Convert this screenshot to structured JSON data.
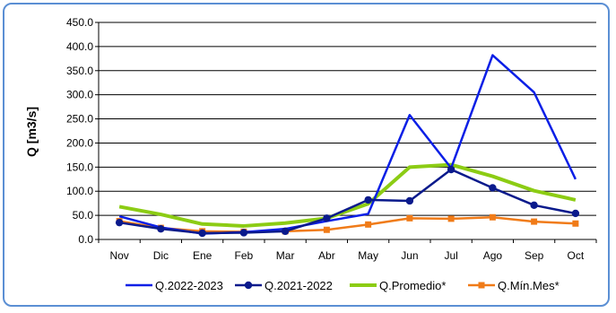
{
  "chart_data": {
    "type": "line",
    "title": "",
    "xlabel": "",
    "ylabel": "Q [m3/s]",
    "ylim": [
      0,
      450
    ],
    "ytick_step": 50,
    "ytick_labels": [
      "0.0",
      "50.0",
      "100.0",
      "150.0",
      "200.0",
      "250.0",
      "300.0",
      "350.0",
      "400.0",
      "450.0"
    ],
    "grid": true,
    "legend_position": "bottom",
    "categories": [
      "Nov",
      "Dic",
      "Ene",
      "Feb",
      "Mar",
      "Abr",
      "May",
      "Jun",
      "Jul",
      "Ago",
      "Sep",
      "Oct"
    ],
    "series": [
      {
        "name": "Q.2022-2023",
        "color": "#0b1fe6",
        "marker": "none",
        "values": [
          48,
          25,
          12,
          15,
          22,
          38,
          53,
          258,
          148,
          382,
          305,
          125
        ]
      },
      {
        "name": "Q.2021-2022",
        "color": "#0a1a8c",
        "marker": "circle",
        "values": [
          35,
          22,
          13,
          14,
          17,
          44,
          82,
          80,
          145,
          107,
          71,
          54
        ]
      },
      {
        "name": "Q.Promedio*",
        "color": "#8ccc14",
        "marker": "none",
        "values": [
          68,
          52,
          32,
          28,
          34,
          44,
          74,
          150,
          155,
          131,
          101,
          82
        ]
      },
      {
        "name": "Q.Mín.Mes*",
        "color": "#f07b18",
        "marker": "square",
        "values": [
          38,
          24,
          17,
          16,
          17,
          20,
          31,
          44,
          43,
          46,
          37,
          33
        ]
      }
    ]
  }
}
